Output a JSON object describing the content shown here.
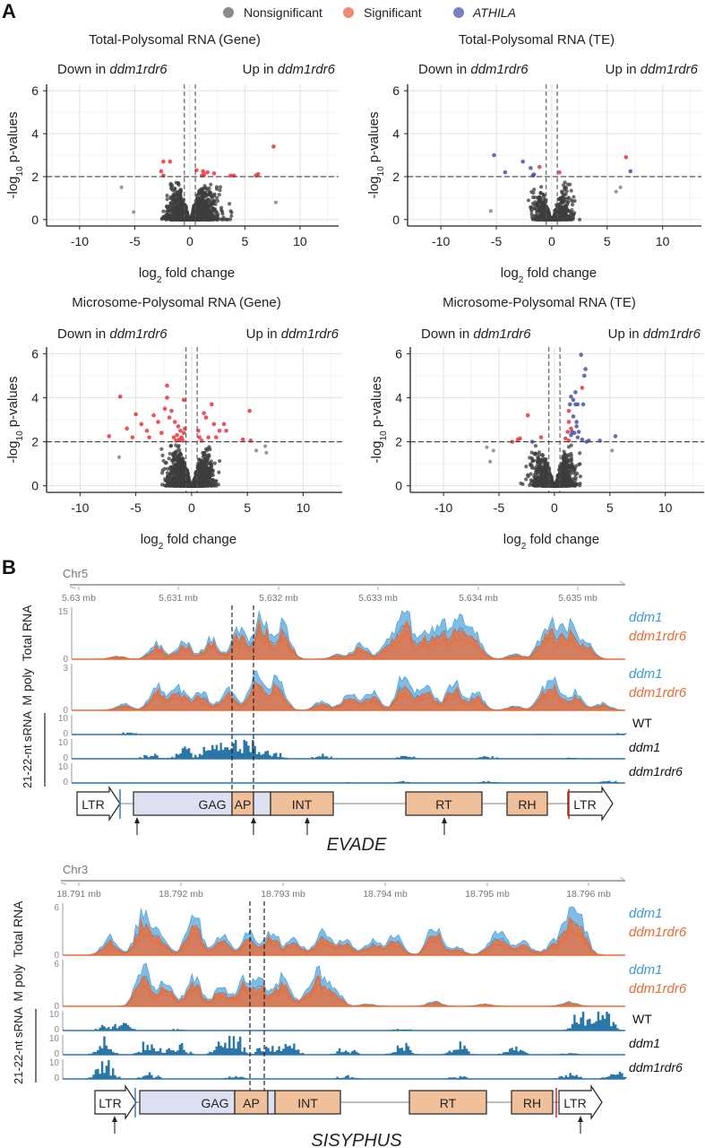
{
  "panel_labels": {
    "a": "A",
    "b": "B"
  },
  "legend": {
    "items": [
      {
        "label": "Nonsignificant",
        "color": "#8a8a8a",
        "italic": false
      },
      {
        "label": "Significant",
        "color": "#f08a72",
        "italic": false
      },
      {
        "label": "ATHILA",
        "color": "#7b7fc4",
        "italic": true
      }
    ]
  },
  "chart_data": [
    {
      "type": "scatter",
      "id": "volcano-total-gene",
      "title": "Total-Polysomal RNA (Gene)",
      "xlabel": "log2 fold change",
      "ylabel": "-log10 p-values",
      "xlim": [
        -13,
        13.5
      ],
      "ylim": [
        -0.3,
        6.3
      ],
      "xticks": [
        -10,
        -5,
        0,
        5,
        10
      ],
      "yticks": [
        0,
        2,
        4,
        6
      ],
      "grid": true,
      "annotations": {
        "left": "Down in ",
        "right": "Up in ",
        "genotype": "ddm1rdr6"
      },
      "thresholds": {
        "x": [
          -0.5,
          0.5
        ],
        "y": 2
      },
      "cloud": {
        "spread_left": 6.2,
        "spread_right": 7.8,
        "max_y": 1.9,
        "density": 1400
      },
      "significant": [
        [
          -2.4,
          2.7
        ],
        [
          -1.8,
          2.7
        ],
        [
          -2.6,
          2.25
        ],
        [
          -2.4,
          2.05
        ],
        [
          0.6,
          2.3
        ],
        [
          1.2,
          2.25
        ],
        [
          1.6,
          2.2
        ],
        [
          1.3,
          2.1
        ],
        [
          1.1,
          2.05
        ],
        [
          2.2,
          2.15
        ],
        [
          3.7,
          2.05
        ],
        [
          4.0,
          2.05
        ],
        [
          6.0,
          2.05
        ],
        [
          6.2,
          2.12
        ],
        [
          7.6,
          3.4
        ]
      ],
      "athila": [],
      "outliers": [
        [
          7.8,
          0.8
        ],
        [
          -6.2,
          1.5
        ],
        [
          -5.1,
          0.35
        ]
      ]
    },
    {
      "type": "scatter",
      "id": "volcano-total-te",
      "title": "Total-Polysomal RNA (TE)",
      "xlabel": "log2 fold change",
      "ylabel": "-log10 p-values",
      "xlim": [
        -13,
        13.5
      ],
      "ylim": [
        -0.3,
        6.3
      ],
      "xticks": [
        -10,
        -5,
        0,
        5,
        10
      ],
      "yticks": [
        0,
        2,
        4,
        6
      ],
      "grid": true,
      "annotations": {
        "left": "Down in ",
        "right": "Up in ",
        "genotype": "ddm1rdr6"
      },
      "thresholds": {
        "x": [
          -0.5,
          0.5
        ],
        "y": 2
      },
      "cloud": {
        "spread_left": 5.0,
        "spread_right": 5.5,
        "max_y": 1.9,
        "density": 700
      },
      "significant": [
        [
          -1.1,
          2.45
        ],
        [
          0.7,
          2.2
        ],
        [
          6.7,
          2.9
        ]
      ],
      "athila": [
        [
          -5.2,
          3.0
        ],
        [
          -2.6,
          2.7
        ],
        [
          -4.2,
          2.2
        ],
        [
          -1.9,
          2.4
        ],
        [
          -1.6,
          2.1
        ],
        [
          -1.7,
          2.05
        ],
        [
          7.1,
          2.25
        ]
      ],
      "outliers": [
        [
          -5.5,
          0.4
        ],
        [
          6.2,
          1.5
        ],
        [
          5.8,
          1.3
        ]
      ]
    },
    {
      "type": "scatter",
      "id": "volcano-microsome-gene",
      "title": "Microsome-Polysomal RNA (Gene)",
      "xlabel": "log2 fold change",
      "ylabel": "-log10 p-values",
      "xlim": [
        -13,
        13.5
      ],
      "ylim": [
        -0.3,
        6.3
      ],
      "xticks": [
        -10,
        -5,
        0,
        5,
        10
      ],
      "yticks": [
        0,
        2,
        4,
        6
      ],
      "grid": true,
      "annotations": {
        "left": "Down in ",
        "right": "Up in ",
        "genotype": "ddm1rdr6"
      },
      "thresholds": {
        "x": [
          -0.5,
          0.5
        ],
        "y": 2
      },
      "cloud": {
        "spread_left": 6.0,
        "spread_right": 5.5,
        "max_y": 2.0,
        "density": 1800
      },
      "significant": [
        [
          -7.4,
          2.25
        ],
        [
          -6.4,
          4.05
        ],
        [
          -5.0,
          3.25
        ],
        [
          -5.8,
          2.6
        ],
        [
          -4.5,
          2.8
        ],
        [
          -4.0,
          2.5
        ],
        [
          -3.4,
          3.2
        ],
        [
          -3.0,
          2.9
        ],
        [
          -2.7,
          2.4
        ],
        [
          -2.4,
          3.5
        ],
        [
          -2.2,
          4.55
        ],
        [
          -2.2,
          4.0
        ],
        [
          -1.8,
          3.4
        ],
        [
          -2.0,
          3.1
        ],
        [
          -1.5,
          2.9
        ],
        [
          -1.2,
          2.7
        ],
        [
          -1.0,
          2.5
        ],
        [
          -1.3,
          2.3
        ],
        [
          -0.9,
          2.2
        ],
        [
          -1.6,
          2.2
        ],
        [
          -0.7,
          2.4
        ],
        [
          -1.1,
          2.1
        ],
        [
          -0.8,
          2.05
        ],
        [
          -1.4,
          2.05
        ],
        [
          -0.6,
          2.6
        ],
        [
          -0.7,
          3.9
        ],
        [
          -3.8,
          2.2
        ],
        [
          -5.3,
          2.2
        ],
        [
          0.6,
          2.5
        ],
        [
          0.7,
          2.2
        ],
        [
          1.1,
          3.3
        ],
        [
          1.3,
          3.1
        ],
        [
          1.8,
          3.7
        ],
        [
          2.0,
          2.8
        ],
        [
          2.5,
          2.5
        ],
        [
          2.9,
          2.8
        ],
        [
          3.1,
          2.5
        ],
        [
          2.2,
          2.2
        ],
        [
          1.5,
          2.2
        ],
        [
          4.6,
          2.1
        ],
        [
          5.2,
          3.4
        ],
        [
          5.3,
          2.05
        ],
        [
          0.9,
          2.05
        ]
      ],
      "athila": [],
      "outliers": [
        [
          6.6,
          1.8
        ],
        [
          6.7,
          1.5
        ],
        [
          5.8,
          1.6
        ],
        [
          -6.5,
          1.3
        ]
      ]
    },
    {
      "type": "scatter",
      "id": "volcano-microsome-te",
      "title": "Microsome-Polysomal RNA (TE)",
      "xlabel": "log2 fold change",
      "ylabel": "-log10 p-values",
      "xlim": [
        -13,
        13.5
      ],
      "ylim": [
        -0.3,
        6.3
      ],
      "xticks": [
        -10,
        -5,
        0,
        5,
        10
      ],
      "yticks": [
        0,
        2,
        4,
        6
      ],
      "grid": true,
      "annotations": {
        "left": "Down in ",
        "right": "Up in ",
        "genotype": "ddm1rdr6"
      },
      "thresholds": {
        "x": [
          -0.5,
          0.5
        ],
        "y": 2
      },
      "cloud": {
        "spread_left": 6.0,
        "spread_right": 5.3,
        "max_y": 1.95,
        "density": 1200
      },
      "significant": [
        [
          -3.8,
          2.0
        ],
        [
          -3.3,
          2.1
        ],
        [
          -3.1,
          2.15
        ],
        [
          -2.4,
          3.2
        ],
        [
          -1.2,
          2.2
        ],
        [
          1.0,
          2.15
        ],
        [
          1.2,
          2.45
        ],
        [
          1.3,
          3.4
        ],
        [
          1.3,
          2.9
        ],
        [
          1.5,
          2.6
        ],
        [
          2.5,
          4.45
        ],
        [
          1.3,
          2.05
        ]
      ],
      "athila": [
        [
          2.4,
          5.95
        ],
        [
          2.8,
          5.3
        ],
        [
          2.7,
          5.0
        ],
        [
          1.9,
          4.25
        ],
        [
          1.5,
          4.05
        ],
        [
          1.7,
          3.9
        ],
        [
          1.4,
          3.7
        ],
        [
          1.9,
          3.7
        ],
        [
          2.1,
          3.7
        ],
        [
          2.6,
          3.7
        ],
        [
          1.7,
          3.15
        ],
        [
          2.0,
          2.9
        ],
        [
          2.0,
          2.7
        ],
        [
          1.6,
          2.45
        ],
        [
          1.8,
          2.4
        ],
        [
          2.2,
          2.45
        ],
        [
          1.5,
          2.3
        ],
        [
          2.1,
          2.2
        ],
        [
          2.5,
          2.1
        ],
        [
          3.1,
          2.05
        ],
        [
          4.1,
          2.05
        ],
        [
          5.5,
          2.25
        ],
        [
          -2.0,
          2.0
        ],
        [
          2.9,
          2.0
        ]
      ],
      "outliers": [
        [
          -6.1,
          1.75
        ],
        [
          -5.8,
          1.1
        ],
        [
          5.2,
          1.6
        ],
        [
          -5.5,
          1.6
        ]
      ]
    }
  ],
  "browser_tracks": [
    {
      "id": "evade",
      "chromosome": "Chr5",
      "ticks": [
        "5.63 mb",
        "5.631 mb",
        "5.632 mb",
        "5.633 mb",
        "5.634 mb",
        "5.635 mb"
      ],
      "rows": {
        "total_rna": {
          "label": "Total RNA",
          "ymax_label": "15",
          "ymin_label": "0",
          "series": [
            "ddm1",
            "ddm1rdr6"
          ]
        },
        "m_poly": {
          "label": "M poly",
          "ymax_label": "3",
          "ymin_label": "0",
          "series": [
            "ddm1",
            "ddm1rdr6"
          ]
        },
        "srna": {
          "label": "21-22-nt sRNA",
          "ymax_label": "10",
          "ymin_label": "0",
          "samples": [
            "WT",
            "ddm1",
            "ddm1rdr6"
          ]
        }
      },
      "domains": [
        "LTR",
        "GAG",
        "AP",
        "INT",
        "RT",
        "RH",
        "LTR"
      ],
      "name": "EVADE"
    },
    {
      "id": "sisyphus",
      "chromosome": "Chr3",
      "ticks": [
        "18.791 mb",
        "18.792 mb",
        "18.793 mb",
        "18.794 mb",
        "18.795 mb",
        "18.796 mb"
      ],
      "rows": {
        "total_rna": {
          "label": "Total RNA",
          "ymax_label": "6",
          "ymin_label": "0",
          "series": [
            "ddm1",
            "ddm1rdr6"
          ]
        },
        "m_poly": {
          "label": "M poly",
          "ymax_label": "6",
          "ymin_label": "0",
          "series": [
            "ddm1",
            "ddm1rdr6"
          ]
        },
        "srna": {
          "label": "21-22-nt sRNA",
          "ymax_label": "10",
          "ymin_label": "0",
          "samples": [
            "WT",
            "ddm1",
            "ddm1rdr6"
          ]
        }
      },
      "domains": [
        "LTR",
        "GAG",
        "AP",
        "INT",
        "RT",
        "RH",
        "LTR"
      ],
      "name": "SISYPHUS"
    }
  ],
  "colors": {
    "ddm1": "#3a9ad9",
    "ddm1rdr6": "#ee6a32",
    "srna": "#2a76a8",
    "domain_orange": "#f0c09a",
    "domain_lavender": "#dde0f2",
    "sig_red": "#e8343c",
    "athila_blue": "#4b53a8",
    "cloud": "#3d3d3d"
  }
}
